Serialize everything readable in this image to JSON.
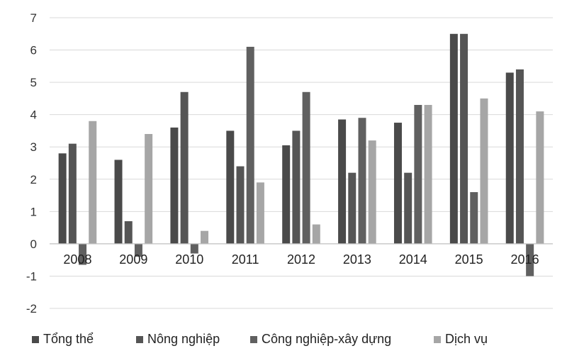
{
  "chart_data": {
    "type": "bar",
    "title": "",
    "xlabel": "",
    "ylabel": "",
    "ylim": [
      -2,
      7
    ],
    "yticks": [
      -2,
      -1,
      0,
      1,
      2,
      3,
      4,
      5,
      6,
      7
    ],
    "grid": true,
    "legend_position": "bottom",
    "categories": [
      "2008",
      "2009",
      "2010",
      "2011",
      "2012",
      "2013",
      "2014",
      "2015",
      "2016"
    ],
    "series": [
      {
        "name": "Tổng thể",
        "color": "#4a4a4a",
        "values": [
          2.8,
          2.6,
          3.6,
          3.5,
          3.05,
          3.85,
          3.75,
          6.5,
          5.3
        ]
      },
      {
        "name": "Nông nghiệp",
        "color": "#555555",
        "values": [
          3.1,
          0.7,
          4.7,
          2.4,
          3.5,
          2.2,
          2.2,
          6.5,
          5.4
        ]
      },
      {
        "name": "Công nghiệp-xây dựng",
        "color": "#606060",
        "values": [
          -0.65,
          -0.4,
          -0.3,
          6.1,
          4.7,
          3.9,
          4.3,
          1.6,
          -1.0
        ]
      },
      {
        "name": "Dịch vụ",
        "color": "#a6a6a6",
        "values": [
          3.8,
          3.4,
          0.4,
          1.9,
          0.6,
          3.2,
          4.3,
          4.5,
          4.1
        ]
      }
    ]
  }
}
